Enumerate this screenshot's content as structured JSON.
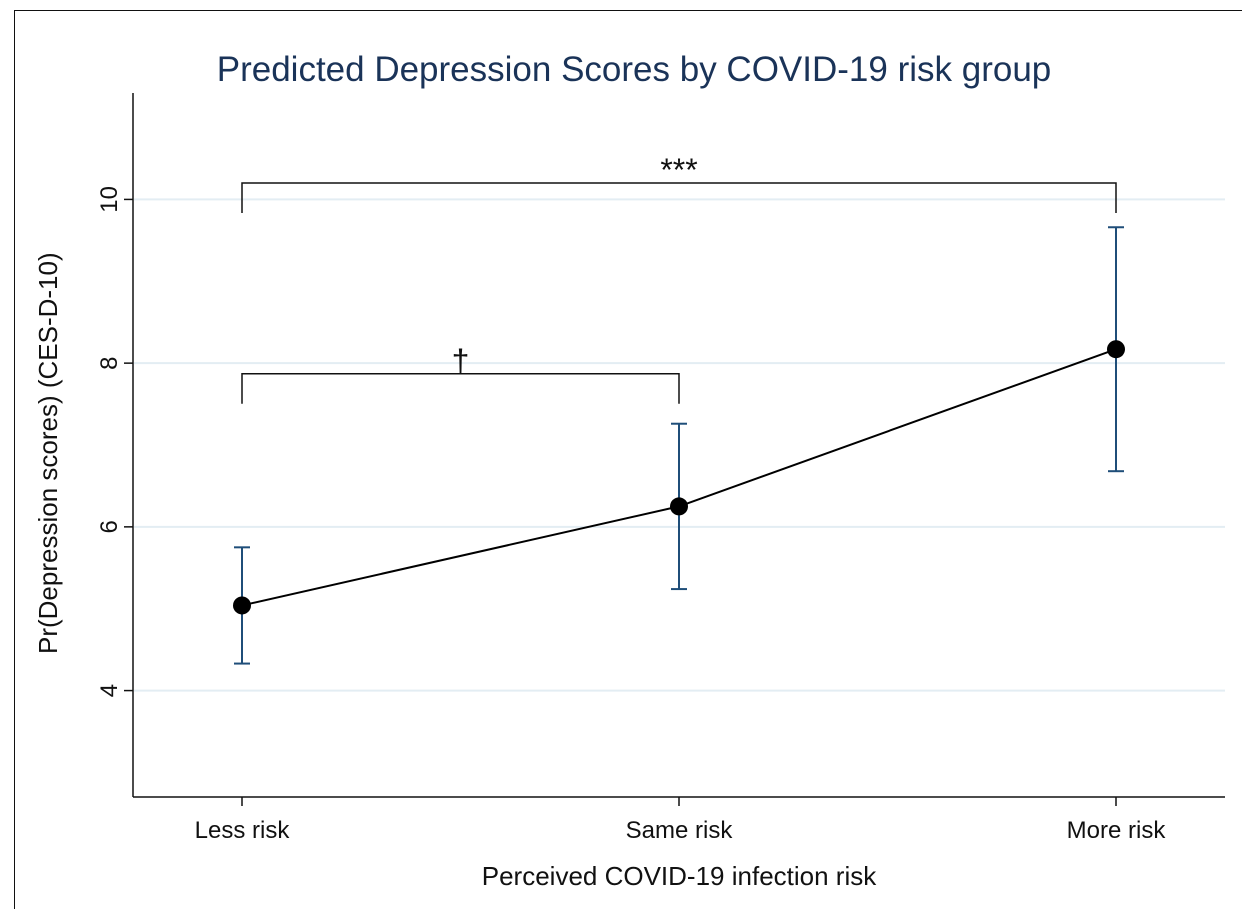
{
  "chart_data": {
    "type": "line",
    "title": "Predicted Depression Scores by COVID-19 risk group",
    "xlabel": "Perceived COVID-19 infection risk",
    "ylabel": "Pr(Depression scores) (CES-D-10)",
    "categories": [
      "Less risk",
      "Same risk",
      "More risk"
    ],
    "values": [
      5.04,
      6.25,
      8.17
    ],
    "ci_lower": [
      4.33,
      5.24,
      6.68
    ],
    "ci_upper": [
      5.75,
      7.26,
      9.66
    ],
    "ylim": [
      2.7,
      11.3
    ],
    "yticks": [
      4,
      6,
      8,
      10
    ],
    "grid": true,
    "annotations": [
      {
        "from": "Less risk",
        "to": "More risk",
        "label": "***",
        "y": 10.2
      },
      {
        "from": "Less risk",
        "to": "Same risk",
        "label": "†",
        "y": 7.87
      }
    ],
    "colors": {
      "title": "#1a3358",
      "errorbar": "#1f4e79",
      "line": "#000000",
      "marker": "#000000",
      "grid": "#e3edf3"
    }
  }
}
